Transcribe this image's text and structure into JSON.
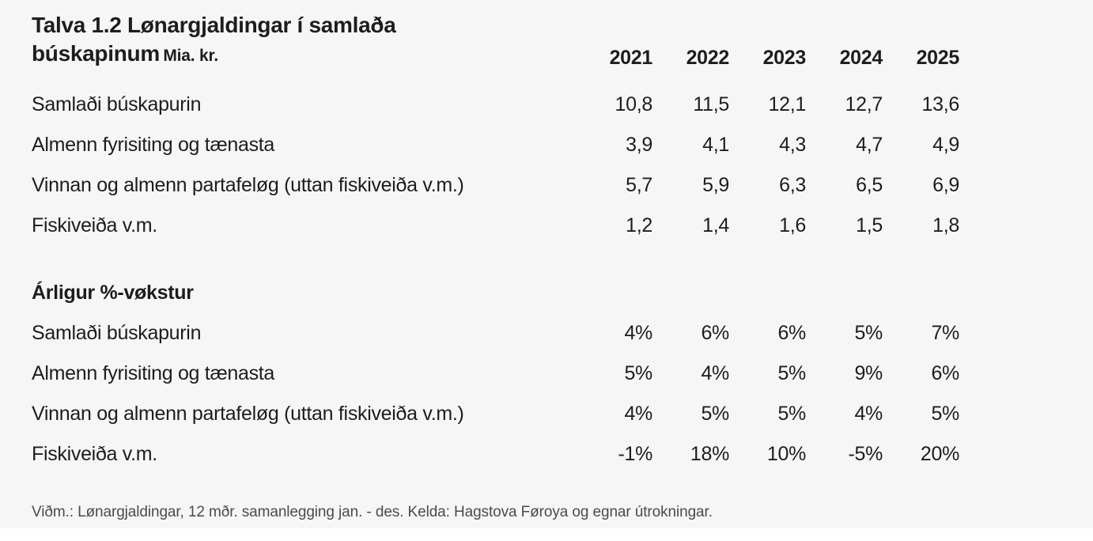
{
  "page": {
    "background_color": "#f6f6f6",
    "text_color": "#1d1d1d",
    "footnote_color": "#4b4b4b"
  },
  "table": {
    "title_line1": "Talva 1.2 Lønargjaldingar í samlaða",
    "title_line2": "búskapinum",
    "title_unit": "Mia. kr.",
    "years": [
      "2021",
      "2022",
      "2023",
      "2024",
      "2025"
    ],
    "amounts": {
      "rows": [
        {
          "label": "Samlaði búskapurin",
          "values": [
            "10,8",
            "11,5",
            "12,1",
            "12,7",
            "13,6"
          ]
        },
        {
          "label": "Almenn fyrisiting og tænasta",
          "values": [
            "3,9",
            "4,1",
            "4,3",
            "4,7",
            "4,9"
          ]
        },
        {
          "label": "Vinnan og almenn partafeløg (uttan fiskiveiða v.m.)",
          "values": [
            "5,7",
            "5,9",
            "6,3",
            "6,5",
            "6,9"
          ]
        },
        {
          "label": "Fiskiveiða v.m.",
          "values": [
            "1,2",
            "1,4",
            "1,6",
            "1,5",
            "1,8"
          ]
        }
      ]
    },
    "growth": {
      "heading": "Árligur %-vøkstur",
      "rows": [
        {
          "label": "Samlaði búskapurin",
          "values": [
            "4%",
            "6%",
            "6%",
            "5%",
            "7%"
          ]
        },
        {
          "label": "Almenn fyrisiting og tænasta",
          "values": [
            "5%",
            "4%",
            "5%",
            "9%",
            "6%"
          ]
        },
        {
          "label": "Vinnan og almenn partafeløg (uttan fiskiveiða v.m.)",
          "values": [
            "4%",
            "5%",
            "5%",
            "4%",
            "5%"
          ]
        },
        {
          "label": "Fiskiveiða v.m.",
          "values": [
            "-1%",
            "18%",
            "10%",
            "-5%",
            "20%"
          ]
        }
      ]
    },
    "footnote": "Viðm.: Lønargjaldingar, 12 mðr. samanlegging jan. - des. Kelda: Hagstova Føroya og egnar útrokningar."
  }
}
